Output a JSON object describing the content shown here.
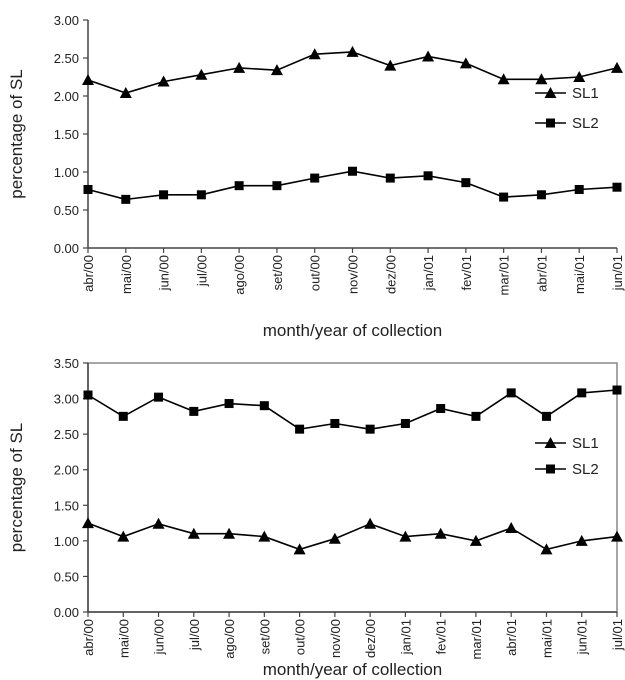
{
  "chart_data": [
    {
      "type": "line",
      "ylabel": "percentage of SL",
      "xlabel": "month/year of collection",
      "ylim": [
        0,
        3
      ],
      "yticks": [
        "0.00",
        "0.50",
        "1.00",
        "1.50",
        "2.00",
        "2.50",
        "3.00"
      ],
      "categories": [
        "abr/00",
        "mai/00",
        "jun/00",
        "jul/00",
        "ago/00",
        "set/00",
        "out/00",
        "nov/00",
        "dez/00",
        "jan/01",
        "fev/01",
        "mar/01",
        "abr/01",
        "mai/01",
        "jun/01"
      ],
      "legend_position": "right",
      "grid": false,
      "series": [
        {
          "name": "SL1",
          "marker": "triangle",
          "values": [
            2.21,
            2.04,
            2.19,
            2.28,
            2.37,
            2.34,
            2.55,
            2.58,
            2.4,
            2.52,
            2.43,
            2.22,
            2.22,
            2.25,
            2.37
          ]
        },
        {
          "name": "SL2",
          "marker": "square",
          "values": [
            0.77,
            0.64,
            0.7,
            0.7,
            0.82,
            0.82,
            0.92,
            1.01,
            0.92,
            0.95,
            0.86,
            0.67,
            0.7,
            0.77,
            0.8
          ]
        }
      ]
    },
    {
      "type": "line",
      "ylabel": "percentage of SL",
      "xlabel": "month/year of collection",
      "ylim": [
        0,
        3.5
      ],
      "yticks": [
        "0.00",
        "0.50",
        "1.00",
        "1.50",
        "2.00",
        "2.50",
        "3.00",
        "3.50"
      ],
      "categories": [
        "abr/00",
        "mai/00",
        "jun/00",
        "jul/00",
        "ago/00",
        "set/00",
        "out/00",
        "nov/00",
        "dez/00",
        "jan/01",
        "fev/01",
        "mar/01",
        "abr/01",
        "mai/01",
        "jun/01",
        "jul/01"
      ],
      "legend_position": "right",
      "grid": false,
      "series": [
        {
          "name": "SL1",
          "marker": "triangle",
          "values": [
            1.25,
            1.06,
            1.24,
            1.1,
            1.1,
            1.06,
            0.88,
            1.03,
            1.24,
            1.06,
            1.1,
            1.0,
            1.18,
            0.88,
            1.0,
            1.06
          ]
        },
        {
          "name": "SL2",
          "marker": "square",
          "values": [
            3.05,
            2.75,
            3.02,
            2.82,
            2.93,
            2.9,
            2.57,
            2.65,
            2.57,
            2.65,
            2.86,
            2.75,
            3.08,
            2.75,
            3.08,
            3.12
          ]
        }
      ]
    }
  ]
}
